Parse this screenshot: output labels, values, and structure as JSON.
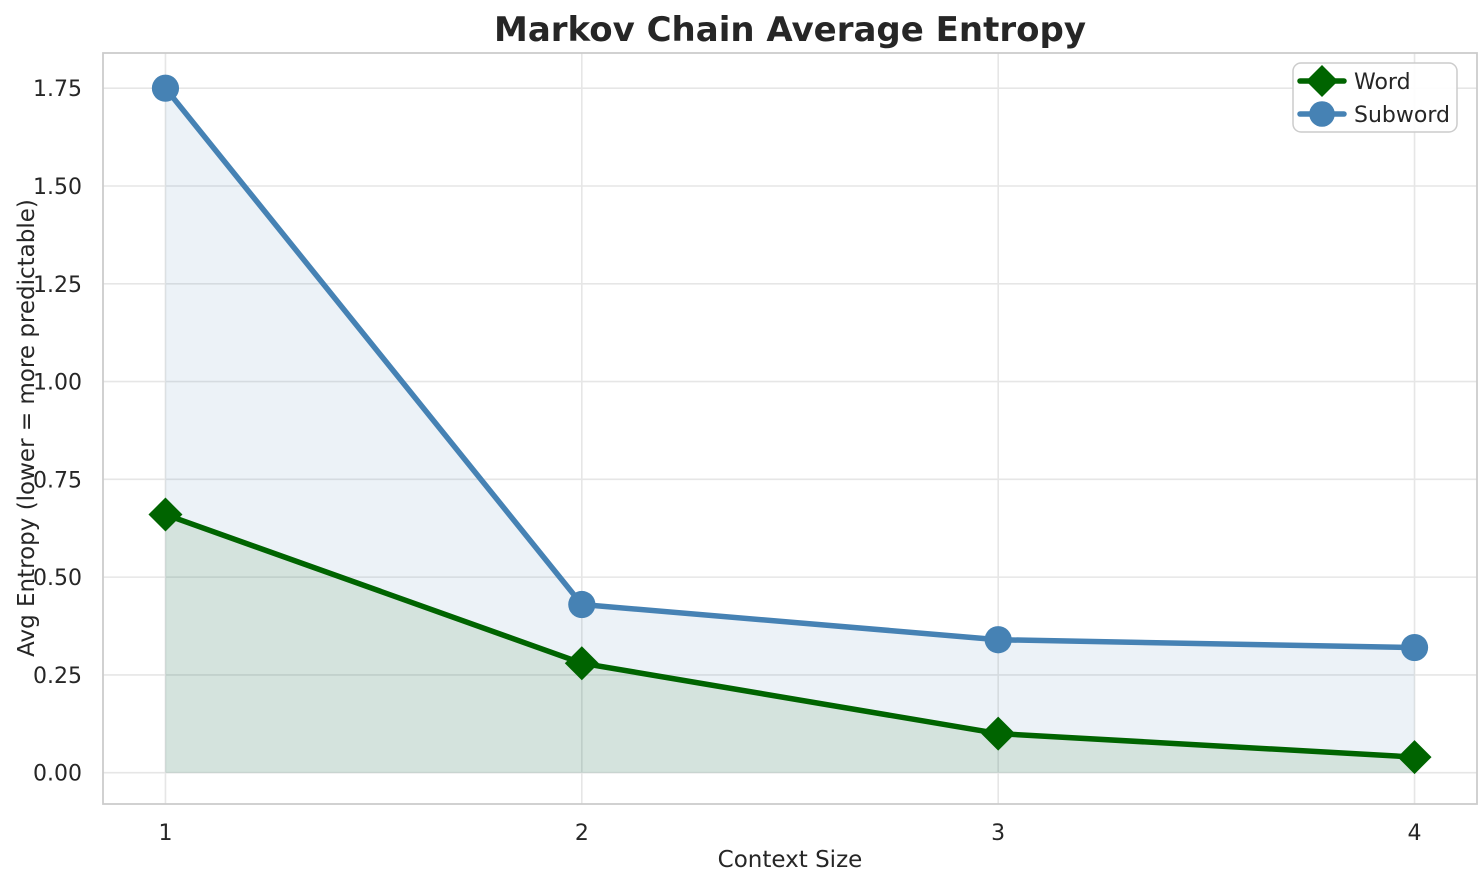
{
  "chart_data": {
    "type": "line",
    "title": "Markov Chain Average Entropy",
    "xlabel": "Context Size",
    "ylabel": "Avg Entropy (lower = more predictable)",
    "x": [
      1,
      2,
      3,
      4
    ],
    "series": [
      {
        "name": "Word",
        "values": [
          0.66,
          0.28,
          0.1,
          0.04
        ],
        "color": "#006400",
        "marker": "diamond",
        "fill_to_zero": true
      },
      {
        "name": "Subword",
        "values": [
          1.75,
          0.43,
          0.34,
          0.32
        ],
        "color": "#4682B4",
        "marker": "circle",
        "fill_to_zero": true
      }
    ],
    "xtick_labels": [
      "1",
      "2",
      "3",
      "4"
    ],
    "xticks": [
      1,
      2,
      3,
      4
    ],
    "ytick_labels": [
      "0.00",
      "0.25",
      "0.50",
      "0.75",
      "1.00",
      "1.25",
      "1.50",
      "1.75"
    ],
    "yticks": [
      0.0,
      0.25,
      0.5,
      0.75,
      1.0,
      1.25,
      1.5,
      1.75
    ],
    "xlim": [
      0.85,
      4.15
    ],
    "ylim": [
      -0.08,
      1.84
    ],
    "grid": true,
    "legend_position": "upper right",
    "fill_opacity": 0.1,
    "colors": {
      "grid": "#E6E6E6",
      "spine": "#CCCCCC",
      "text": "#262626",
      "background": "#FFFFFF",
      "word_line": "#006400",
      "subword_line": "#4682B4"
    }
  }
}
